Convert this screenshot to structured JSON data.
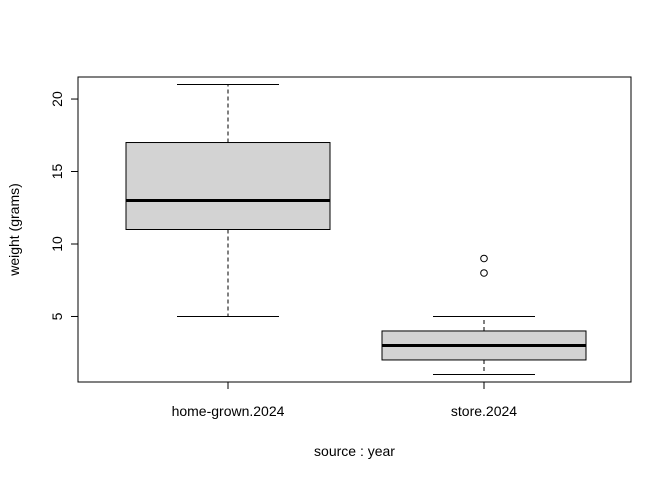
{
  "chart_data": {
    "type": "boxplot",
    "title": "",
    "xlabel": "source : year",
    "ylabel": "weight (grams)",
    "ylim": [
      0,
      22
    ],
    "yticks": [
      5,
      10,
      15,
      20
    ],
    "grid": false,
    "legend": "none",
    "colors": {
      "box_fill": "#d3d3d3",
      "stroke": "#000000",
      "background": "#ffffff"
    },
    "categories": [
      "home-grown.2024",
      "store.2024"
    ],
    "series": [
      {
        "category": "home-grown.2024",
        "whisker_low": 5,
        "q1": 11,
        "median": 13,
        "q3": 17,
        "whisker_high": 21,
        "outliers": []
      },
      {
        "category": "store.2024",
        "whisker_low": 1,
        "q1": 2,
        "median": 3,
        "q3": 4,
        "whisker_high": 5,
        "outliers": [
          8,
          9
        ]
      }
    ]
  }
}
